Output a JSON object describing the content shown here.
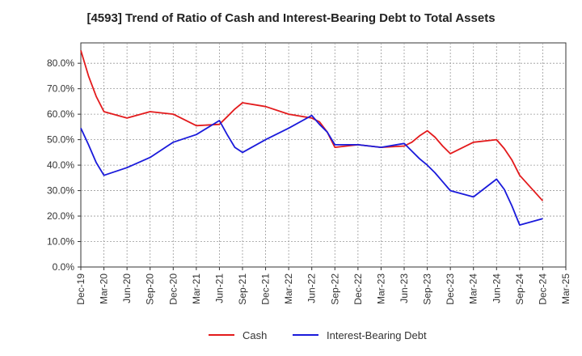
{
  "chart_data": {
    "type": "line",
    "title": "[4593]  Trend of Ratio of Cash and Interest-Bearing Debt to Total Assets",
    "xlabel": "",
    "ylabel": "",
    "ylim": [
      0,
      0.88
    ],
    "y_ticks": [
      0,
      0.1,
      0.2,
      0.3,
      0.4,
      0.5,
      0.6,
      0.7,
      0.8
    ],
    "y_tick_labels": [
      "0.0%",
      "10.0%",
      "20.0%",
      "30.0%",
      "40.0%",
      "50.0%",
      "60.0%",
      "70.0%",
      "80.0%"
    ],
    "x_tick_labels": [
      "Dec-19",
      "Mar-20",
      "Jun-20",
      "Sep-20",
      "Dec-20",
      "Mar-21",
      "Jun-21",
      "Sep-21",
      "Dec-21",
      "Mar-22",
      "Jun-22",
      "Sep-22",
      "Dec-22",
      "Mar-23",
      "Jun-23",
      "Sep-23",
      "Dec-23",
      "Mar-24",
      "Jun-24",
      "Sep-24",
      "Dec-24",
      "Mar-25"
    ],
    "grid": true,
    "legend_position": "bottom",
    "series": [
      {
        "name": "Cash",
        "color": "#e31a1c",
        "x": [
          "Dec-19",
          "Jan-20",
          "Feb-20",
          "Mar-20",
          "Jun-20",
          "Sep-20",
          "Dec-20",
          "Mar-21",
          "Jun-21",
          "Jul-21",
          "Aug-21",
          "Sep-21",
          "Dec-21",
          "Mar-22",
          "Jun-22",
          "Jul-22",
          "Aug-22",
          "Sep-22",
          "Dec-22",
          "Mar-23",
          "Jun-23",
          "Jul-23",
          "Aug-23",
          "Sep-23",
          "Oct-23",
          "Nov-23",
          "Dec-23",
          "Mar-24",
          "Jun-24",
          "Jul-24",
          "Aug-24",
          "Sep-24",
          "Dec-24"
        ],
        "values": [
          0.85,
          0.75,
          0.67,
          0.61,
          0.585,
          0.61,
          0.6,
          0.555,
          0.56,
          0.59,
          0.62,
          0.645,
          0.63,
          0.6,
          0.585,
          0.57,
          0.53,
          0.47,
          0.48,
          0.47,
          0.475,
          0.49,
          0.515,
          0.535,
          0.51,
          0.475,
          0.445,
          0.49,
          0.5,
          0.465,
          0.42,
          0.36,
          0.26
        ]
      },
      {
        "name": "Interest-Bearing Debt",
        "color": "#1a1adb",
        "x": [
          "Dec-19",
          "Jan-20",
          "Feb-20",
          "Mar-20",
          "Jun-20",
          "Sep-20",
          "Dec-20",
          "Mar-21",
          "Jun-21",
          "Jul-21",
          "Aug-21",
          "Sep-21",
          "Dec-21",
          "Mar-22",
          "Jun-22",
          "Jul-22",
          "Aug-22",
          "Sep-22",
          "Dec-22",
          "Mar-23",
          "Jun-23",
          "Jul-23",
          "Aug-23",
          "Sep-23",
          "Oct-23",
          "Nov-23",
          "Dec-23",
          "Mar-24",
          "Jun-24",
          "Jul-24",
          "Aug-24",
          "Sep-24",
          "Dec-24"
        ],
        "values": [
          0.545,
          0.48,
          0.41,
          0.36,
          0.39,
          0.43,
          0.49,
          0.52,
          0.575,
          0.52,
          0.47,
          0.45,
          0.5,
          0.545,
          0.595,
          0.56,
          0.53,
          0.48,
          0.48,
          0.47,
          0.485,
          0.455,
          0.425,
          0.4,
          0.37,
          0.335,
          0.3,
          0.275,
          0.345,
          0.305,
          0.24,
          0.165,
          0.19
        ]
      }
    ]
  }
}
